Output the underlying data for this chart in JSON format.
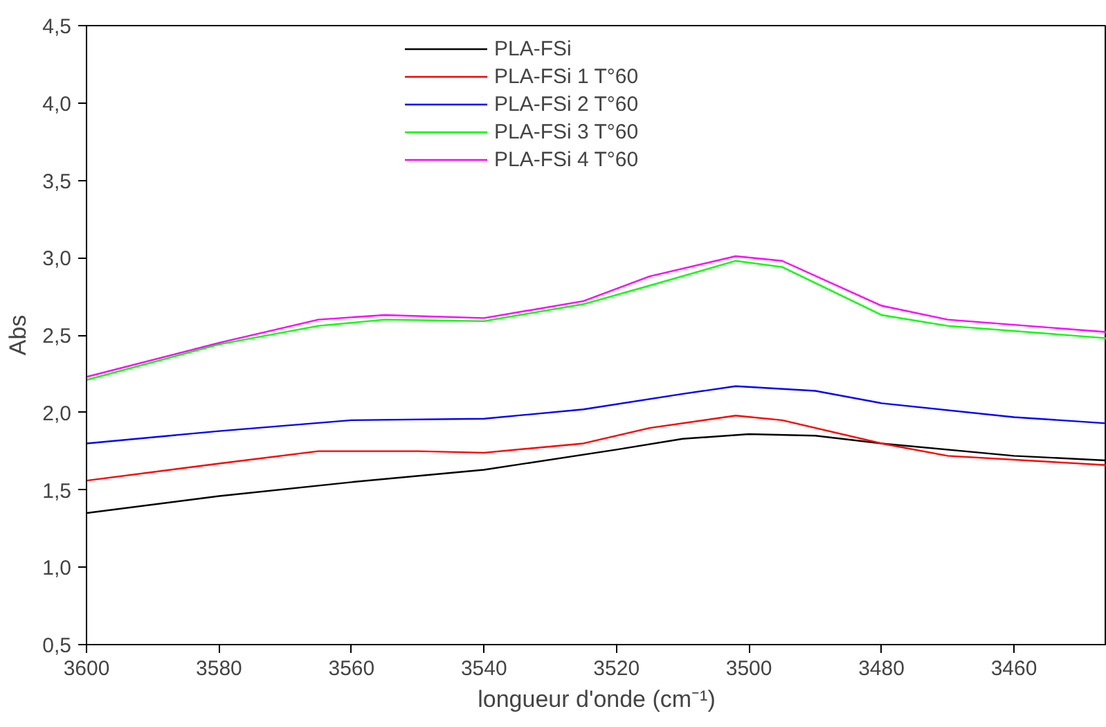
{
  "chart_data": {
    "type": "line",
    "xlabel": "longueur d'onde (cm⁻¹)",
    "ylabel": "Abs",
    "xlim": [
      3600,
      3446
    ],
    "ylim": [
      0.5,
      4.5
    ],
    "xticks": [
      3600,
      3580,
      3560,
      3540,
      3520,
      3500,
      3480,
      3460
    ],
    "yticks": [
      {
        "value": 0.5,
        "label": "0,5"
      },
      {
        "value": 1.0,
        "label": "1,0"
      },
      {
        "value": 1.5,
        "label": "1,5"
      },
      {
        "value": 2.0,
        "label": "2,0"
      },
      {
        "value": 2.5,
        "label": "2,5"
      },
      {
        "value": 3.0,
        "label": "3,0"
      },
      {
        "value": 3.5,
        "label": "3,5"
      },
      {
        "value": 4.0,
        "label": "4,0"
      },
      {
        "value": 4.5,
        "label": "4,5"
      }
    ],
    "grid": false,
    "legend": "top",
    "marker": "none",
    "line_style": "solid",
    "series": [
      {
        "name": "PLA-FSi",
        "color": "#000000",
        "x": [
          3600,
          3580,
          3560,
          3540,
          3520,
          3510,
          3500,
          3490,
          3480,
          3460,
          3446
        ],
        "values": [
          1.35,
          1.46,
          1.55,
          1.63,
          1.76,
          1.83,
          1.86,
          1.85,
          1.8,
          1.72,
          1.69
        ]
      },
      {
        "name": "PLA-FSi 1 T°60",
        "color": "#ff0000",
        "x": [
          3600,
          3580,
          3565,
          3550,
          3540,
          3525,
          3515,
          3502,
          3495,
          3480,
          3470,
          3446
        ],
        "values": [
          1.56,
          1.67,
          1.75,
          1.75,
          1.74,
          1.8,
          1.9,
          1.98,
          1.95,
          1.8,
          1.72,
          1.66
        ]
      },
      {
        "name": "PLA-FSi 2 T°60",
        "color": "#0000ff",
        "x": [
          3600,
          3580,
          3560,
          3540,
          3525,
          3510,
          3502,
          3490,
          3480,
          3460,
          3446
        ],
        "values": [
          1.8,
          1.88,
          1.95,
          1.96,
          2.02,
          2.12,
          2.17,
          2.14,
          2.06,
          1.97,
          1.93
        ]
      },
      {
        "name": "PLA-FSi 3 T°60",
        "color": "#00ff00",
        "x": [
          3600,
          3580,
          3565,
          3555,
          3540,
          3525,
          3515,
          3502,
          3495,
          3480,
          3470,
          3446
        ],
        "values": [
          2.21,
          2.44,
          2.56,
          2.6,
          2.59,
          2.7,
          2.82,
          2.98,
          2.94,
          2.63,
          2.56,
          2.48
        ]
      },
      {
        "name": "PLA-FSi 4 T°60",
        "color": "#ff00ff",
        "x": [
          3600,
          3580,
          3565,
          3555,
          3540,
          3525,
          3515,
          3502,
          3495,
          3480,
          3470,
          3446
        ],
        "values": [
          2.23,
          2.45,
          2.6,
          2.63,
          2.61,
          2.72,
          2.88,
          3.01,
          2.98,
          2.69,
          2.6,
          2.52
        ]
      }
    ]
  }
}
